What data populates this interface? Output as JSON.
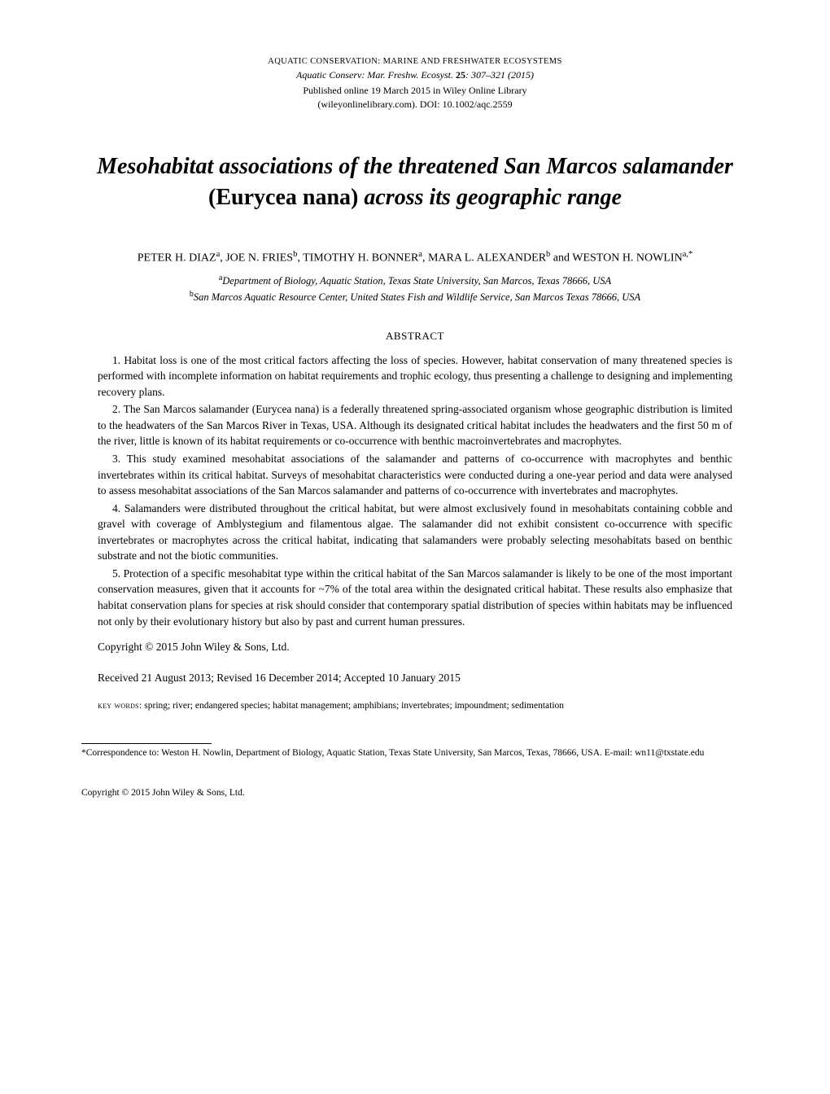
{
  "header": {
    "category": "AQUATIC CONSERVATION: MARINE AND FRESHWATER ECOSYSTEMS",
    "citation_journal": "Aquatic Conserv: Mar. Freshw. Ecosyst.",
    "citation_vol": "25",
    "citation_pages": ": 307–321 (2015)",
    "pub_line": "Published online 19 March 2015 in Wiley Online Library",
    "doi_line": "(wileyonlinelibrary.com). DOI: 10.1002/aqc.2559"
  },
  "title": {
    "part1": "Mesohabitat associations of the threatened San Marcos salamander",
    "part2_nonital": "(Eurycea nana)",
    "part3": " across its geographic range"
  },
  "authors": {
    "a1_name": "PETER H. DIAZ",
    "a1_sup": "a",
    "sep12": ", ",
    "a2_name": "JOE N. FRIES",
    "a2_sup": "b",
    "sep23": ", ",
    "a3_name": "TIMOTHY H. BONNER",
    "a3_sup": "a",
    "sep34": ", ",
    "a4_name": "MARA L. ALEXANDER",
    "a4_sup": "b",
    "sep45": " and ",
    "a5_name": "WESTON H. NOWLIN",
    "a5_sup": "a,*"
  },
  "affiliations": {
    "a_sup": "a",
    "a_text": "Department of Biology, Aquatic Station, Texas State University, San Marcos, Texas 78666, USA",
    "b_sup": "b",
    "b_text": "San Marcos Aquatic Resource Center, United States Fish and Wildlife Service, San Marcos Texas 78666, USA"
  },
  "abstract": {
    "heading": "ABSTRACT",
    "p1": "1. Habitat loss is one of the most critical factors affecting the loss of species. However, habitat conservation of many threatened species is performed with incomplete information on habitat requirements and trophic ecology, thus presenting a challenge to designing and implementing recovery plans.",
    "p2": "2. The San Marcos salamander (Eurycea nana) is a federally threatened spring-associated organism whose geographic distribution is limited to the headwaters of the San Marcos River in Texas, USA. Although its designated critical habitat includes the headwaters and the first 50 m of the river, little is known of its habitat requirements or co-occurrence with benthic macroinvertebrates and macrophytes.",
    "p3": "3. This study examined mesohabitat associations of the salamander and patterns of co-occurrence with macrophytes and benthic invertebrates within its critical habitat. Surveys of mesohabitat characteristics were conducted during a one-year period and data were analysed to assess mesohabitat associations of the San Marcos salamander and patterns of co-occurrence with invertebrates and macrophytes.",
    "p4": "4. Salamanders were distributed throughout the critical habitat, but were almost exclusively found in mesohabitats containing cobble and gravel with coverage of Amblystegium and filamentous algae. The salamander did not exhibit consistent co-occurrence with specific invertebrates or macrophytes across the critical habitat, indicating that salamanders were probably selecting mesohabitats based on benthic substrate and not the biotic communities.",
    "p5": "5. Protection of a specific mesohabitat type within the critical habitat of the San Marcos salamander is likely to be one of the most important conservation measures, given that it accounts for ~7% of the total area within the designated critical habitat. These results also emphasize that habitat conservation plans for species at risk should consider that contemporary spatial distribution of species within habitats may be influenced not only by their evolutionary history but also by past and current human pressures.",
    "copyright": "Copyright © 2015 John Wiley & Sons, Ltd."
  },
  "received": "Received 21 August 2013; Revised 16 December 2014; Accepted 10 January 2015",
  "keywords": {
    "label": "key words:",
    "text": "   spring; river; endangered species; habitat management; amphibians; invertebrates; impoundment; sedimentation"
  },
  "footnote": "*Correspondence to: Weston H. Nowlin, Department of Biology, Aquatic Station, Texas State University, San Marcos, Texas, 78666, USA. E-mail: wn11@txstate.edu",
  "footer": "Copyright © 2015 John Wiley & Sons, Ltd."
}
